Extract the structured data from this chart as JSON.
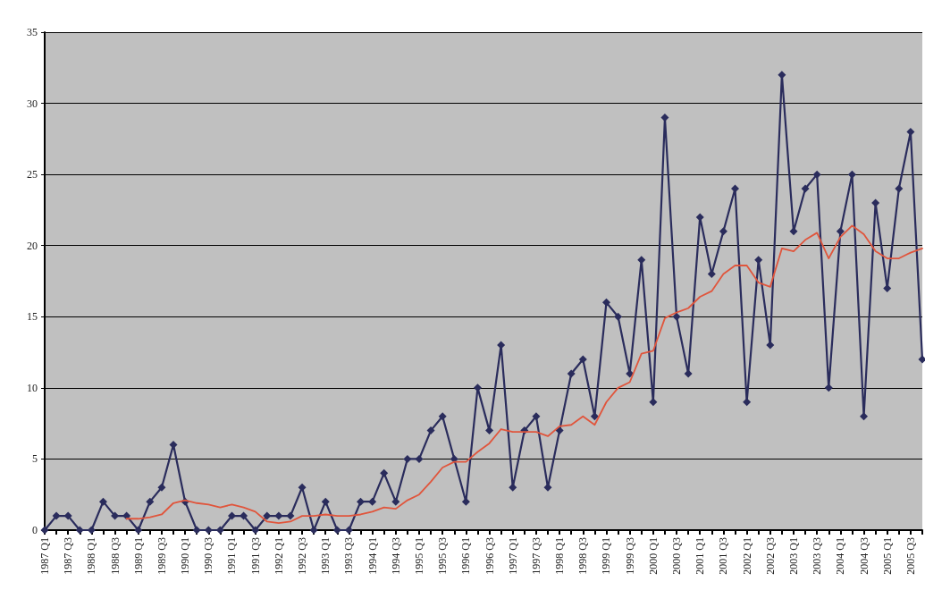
{
  "chart_data": {
    "type": "line",
    "categories": [
      "1987 Q1",
      null,
      "1987 Q3",
      null,
      "1988 Q1",
      null,
      "1988 Q3",
      null,
      "1989 Q1",
      null,
      "1989 Q3",
      null,
      "1990 Q1",
      null,
      "1990 Q3",
      null,
      "1991 Q1",
      null,
      "1991 Q3",
      null,
      "1992 Q1",
      null,
      "1992 Q3",
      null,
      "1993 Q1",
      null,
      "1993 Q3",
      null,
      "1994 Q1",
      null,
      "1994 Q3",
      null,
      "1995 Q1",
      null,
      "1995 Q3",
      null,
      "1996 Q1",
      null,
      "1996 Q3",
      null,
      "1997 Q1",
      null,
      "1997 Q3",
      null,
      "1998 Q1",
      null,
      "1998 Q3",
      null,
      "1999 Q1",
      null,
      "1999 Q3",
      null,
      "2000 Q1",
      null,
      "2000 Q3",
      null,
      "2001 Q1",
      null,
      "2001 Q3",
      null,
      "2002 Q1",
      null,
      "2002 Q3",
      null,
      "2003 Q1",
      null,
      "2003 Q3",
      null,
      "2004 Q1",
      null,
      "2004 Q3",
      null,
      "2005 Q1",
      null,
      "2005 Q3",
      null
    ],
    "series": [
      {
        "color": "#2a2c5c",
        "marker": "diamond",
        "values": [
          0,
          1,
          1,
          0,
          0,
          2,
          1,
          1,
          0,
          2,
          3,
          6,
          2,
          0,
          0,
          0,
          1,
          1,
          0,
          1,
          1,
          1,
          3,
          0,
          2,
          0,
          0,
          2,
          2,
          4,
          2,
          5,
          5,
          7,
          8,
          5,
          2,
          10,
          7,
          13,
          3,
          7,
          8,
          3,
          7,
          11,
          12,
          8,
          16,
          15,
          11,
          19,
          9,
          29,
          15,
          11,
          22,
          18,
          21,
          24,
          9,
          19,
          13,
          32,
          21,
          24,
          25,
          10,
          21,
          25,
          8,
          23,
          17,
          24,
          28,
          12
        ]
      },
      {
        "color": "#e0553c",
        "marker": "none",
        "values": [
          null,
          null,
          null,
          null,
          null,
          null,
          null,
          0.8,
          0.8,
          0.9,
          1.1,
          1.9,
          2.1,
          1.9,
          1.8,
          1.6,
          1.8,
          1.6,
          1.3,
          0.6,
          0.5,
          0.6,
          1,
          1,
          1.1,
          1,
          1,
          1.1,
          1.3,
          1.6,
          1.5,
          2.1,
          2.5,
          3.4,
          4.4,
          4.8,
          4.8,
          5.5,
          6.1,
          7.1,
          6.9,
          6.9,
          6.9,
          6.6,
          7.3,
          7.4,
          8,
          7.4,
          9,
          10,
          10.4,
          12.4,
          12.6,
          14.9,
          15.3,
          15.6,
          16.4,
          16.8,
          18,
          18.6,
          18.6,
          17.4,
          17.1,
          19.8,
          19.6,
          20.4,
          20.9,
          19.1,
          20.6,
          21.4,
          20.8,
          19.6,
          19.1,
          19.1,
          19.5,
          19.8
        ]
      }
    ],
    "ylim": [
      0,
      35
    ],
    "yticks": [
      0,
      5,
      10,
      15,
      20,
      25,
      30,
      35
    ],
    "grid": "y",
    "legend": false
  }
}
